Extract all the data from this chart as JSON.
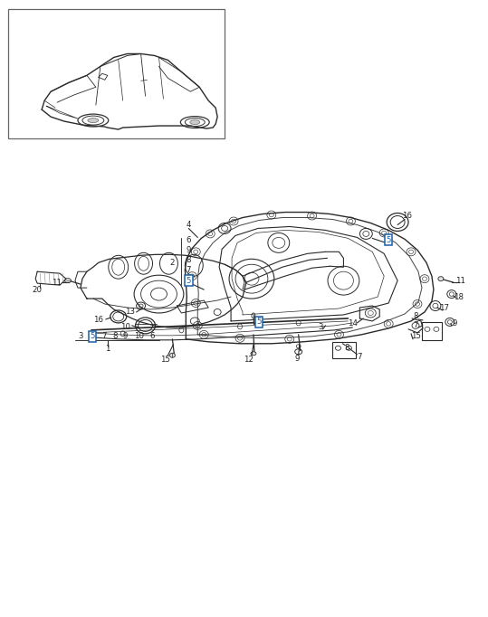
{
  "bg_color": "#ffffff",
  "line_color": "#2a2a2a",
  "highlight_color": "#1a5fa8",
  "fig_width": 5.39,
  "fig_height": 6.82,
  "dpi": 100
}
